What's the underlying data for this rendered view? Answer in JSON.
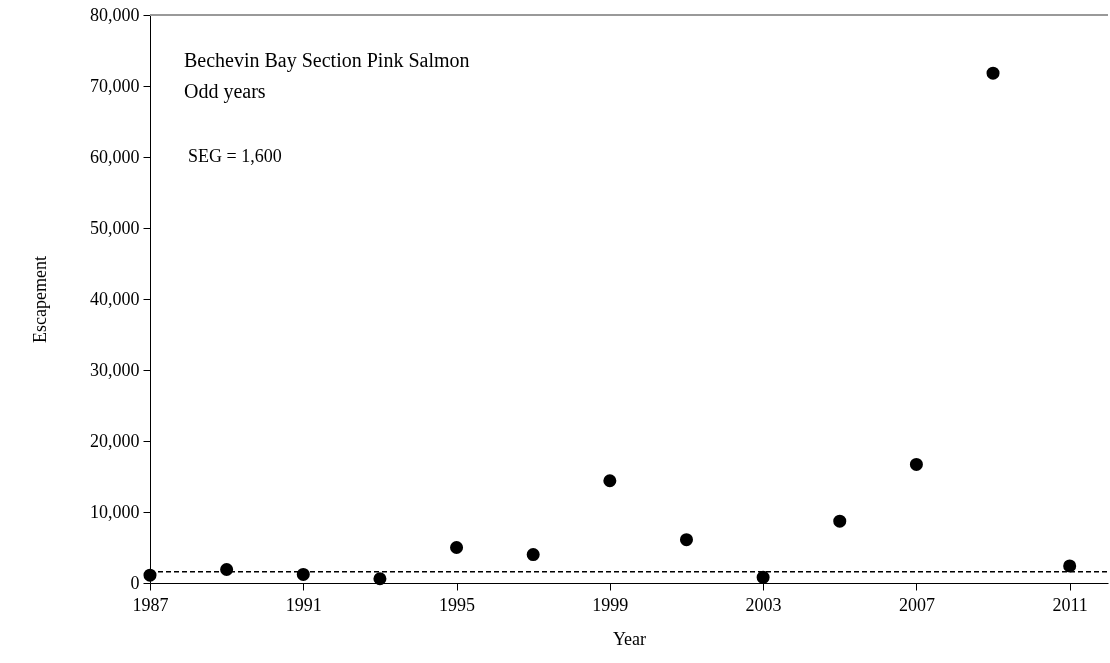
{
  "chart_data": {
    "type": "scatter",
    "xlabel": "Year",
    "ylabel": "Escapement",
    "annotations": [
      "Bechevin Bay Section Pink Salmon",
      "Odd years"
    ],
    "x": [
      1987,
      1989,
      1991,
      1993,
      1995,
      1997,
      1999,
      2001,
      2003,
      2005,
      2007,
      2009,
      2011
    ],
    "series": [
      {
        "color": "#000000",
        "values": [
          1100,
          1900,
          1200,
          600,
          5000,
          4000,
          14400,
          6100,
          800,
          8700,
          16700,
          71800,
          2400
        ]
      }
    ],
    "marker": "circle",
    "xlim": [
      1987,
      2012
    ],
    "xticks": [
      1987,
      1991,
      1995,
      1999,
      2003,
      2007,
      2011
    ],
    "ylim": [
      0,
      80000
    ],
    "yticks": [
      0,
      {
        "value": 10000,
        "label": "10,000"
      },
      {
        "value": 20000,
        "label": "20,000"
      },
      {
        "value": 30000,
        "label": "30,000"
      },
      {
        "value": 40000,
        "label": "40,000"
      },
      {
        "value": 50000,
        "label": "50,000"
      },
      {
        "value": 60000,
        "label": "60,000"
      },
      {
        "value": 70000,
        "label": "70,000"
      },
      {
        "value": 80000,
        "label": "80,000"
      }
    ],
    "ref_lines": [
      {
        "axis": "y",
        "value": 1600,
        "label": "SEG =  1,600",
        "color": "#000000",
        "line_style": "dashed"
      }
    ],
    "grid": false
  }
}
